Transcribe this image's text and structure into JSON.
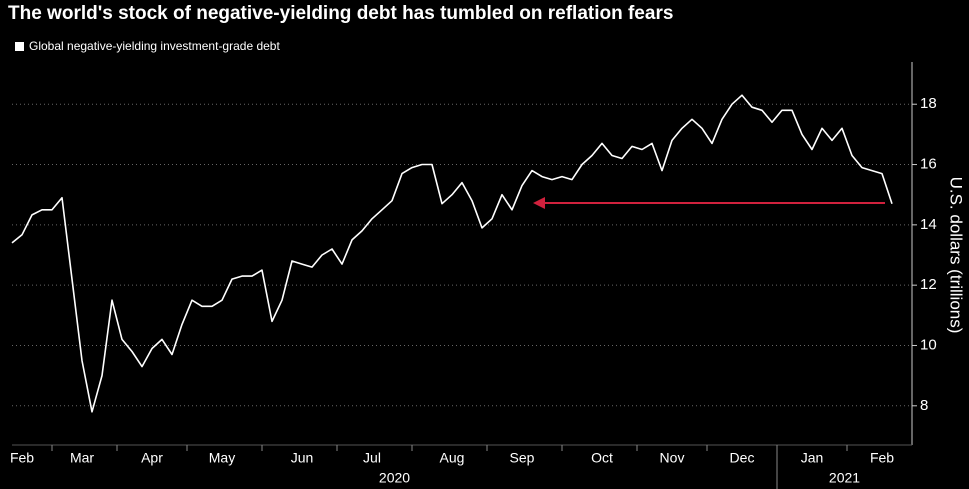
{
  "chart_data": {
    "type": "line",
    "title": "The world's stock of negative-yielding debt has tumbled on reflation fears",
    "y_label": "U.S. dollars (trillions)",
    "series": [
      {
        "name": "Global negative-yielding investment-grade debt",
        "color": "#ffffff",
        "values": [
          13.4,
          13.67,
          14.33,
          14.5,
          14.5,
          14.9,
          12.2,
          9.5,
          7.8,
          9.0,
          11.5,
          10.2,
          9.8,
          9.3,
          9.9,
          10.2,
          9.7,
          10.7,
          11.5,
          11.3,
          11.3,
          11.5,
          12.2,
          12.3,
          12.3,
          12.5,
          10.8,
          11.5,
          12.8,
          12.7,
          12.6,
          13.0,
          13.2,
          12.7,
          13.5,
          13.8,
          14.2,
          14.5,
          14.8,
          15.7,
          15.9,
          16.0,
          16.0,
          14.7,
          15.0,
          15.4,
          14.8,
          13.9,
          14.2,
          15.0,
          14.5,
          15.3,
          15.8,
          15.6,
          15.5,
          15.6,
          15.5,
          16.0,
          16.3,
          16.7,
          16.3,
          16.2,
          16.6,
          16.5,
          16.7,
          15.8,
          16.8,
          17.2,
          17.5,
          17.2,
          16.7,
          17.5,
          18.0,
          18.3,
          17.9,
          17.8,
          17.4,
          17.8,
          17.8,
          17.0,
          16.5,
          17.2,
          16.8,
          17.2,
          16.3,
          15.9,
          15.8,
          15.7,
          14.7
        ]
      }
    ],
    "categories": [
      null,
      "Feb",
      null,
      null,
      null,
      null,
      null,
      "Mar",
      null,
      null,
      null,
      null,
      null,
      null,
      "Apr",
      null,
      null,
      null,
      null,
      null,
      null,
      "May",
      null,
      null,
      null,
      null,
      null,
      null,
      null,
      "Jun",
      null,
      null,
      null,
      null,
      null,
      null,
      "Jul",
      null,
      null,
      null,
      null,
      null,
      null,
      null,
      "Aug",
      null,
      null,
      null,
      null,
      null,
      null,
      "Sep",
      null,
      null,
      null,
      null,
      null,
      null,
      null,
      "Oct",
      null,
      null,
      null,
      null,
      null,
      null,
      "Nov",
      null,
      null,
      null,
      null,
      null,
      null,
      "Dec",
      null,
      null,
      null,
      null,
      null,
      null,
      "Jan",
      null,
      null,
      null,
      null,
      null,
      null,
      "Feb",
      null
    ],
    "years": [
      "2020",
      "2021"
    ],
    "ylim": [
      6.7,
      19.4
    ],
    "yticks": [
      8,
      10,
      12,
      14,
      16,
      18
    ],
    "grid": true
  }
}
